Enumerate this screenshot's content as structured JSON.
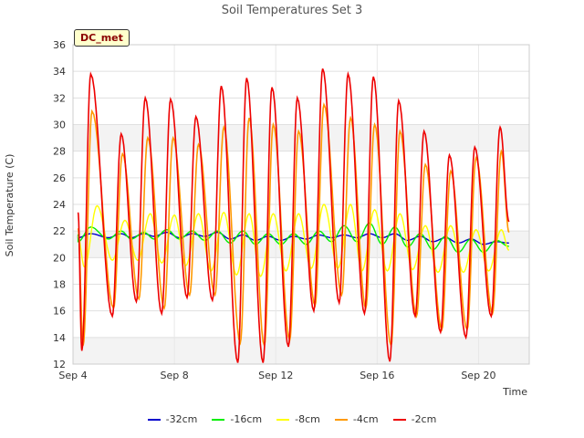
{
  "chart_data": {
    "type": "line",
    "title": "Soil Temperatures Set 3",
    "xlabel": "Time",
    "ylabel": "Soil Temperature (C)",
    "site_label": "DC_met",
    "x_ticks": [
      "Sep 4",
      "Sep 8",
      "Sep 12",
      "Sep 16",
      "Sep 20"
    ],
    "x_range_days": [
      4,
      22
    ],
    "ylim": [
      12,
      36
    ],
    "y_ticks": [
      12,
      14,
      16,
      18,
      20,
      22,
      24,
      26,
      28,
      30,
      32,
      34,
      36
    ],
    "grid": true,
    "legend_position": "bottom",
    "series": [
      {
        "name": "-32cm",
        "color": "#0000cc",
        "peak_days": [
          4.7,
          5.9,
          6.8,
          7.7,
          8.7,
          9.7,
          10.7,
          11.7,
          12.7,
          13.7,
          14.7,
          15.7,
          16.7,
          17.7,
          18.7,
          19.7,
          20.7
        ],
        "peaks": [
          21.8,
          21.8,
          21.8,
          21.9,
          21.8,
          21.9,
          21.7,
          21.6,
          21.6,
          21.7,
          21.7,
          21.8,
          21.8,
          21.6,
          21.5,
          21.4,
          21.2
        ],
        "troughs": [
          21.5,
          21.5,
          21.5,
          21.6,
          21.5,
          21.6,
          21.4,
          21.3,
          21.3,
          21.4,
          21.5,
          21.5,
          21.5,
          21.3,
          21.2,
          21.1,
          21.0
        ]
      },
      {
        "name": "-16cm",
        "color": "#00ee00",
        "peak_days": [
          4.7,
          5.9,
          6.8,
          7.7,
          8.7,
          9.7,
          10.7,
          11.7,
          12.7,
          13.7,
          14.7,
          15.7,
          16.7,
          17.7,
          18.7,
          19.7,
          20.7
        ],
        "peaks": [
          22.3,
          22.0,
          21.9,
          22.1,
          22.0,
          22.0,
          22.0,
          21.8,
          21.8,
          22.0,
          22.4,
          22.6,
          22.3,
          21.8,
          21.6,
          21.4,
          21.3
        ],
        "troughs": [
          21.2,
          21.4,
          21.4,
          21.4,
          21.4,
          21.3,
          21.1,
          21.0,
          21.0,
          21.0,
          21.2,
          21.2,
          21.0,
          20.8,
          20.6,
          20.4,
          20.4
        ]
      },
      {
        "name": "-8cm",
        "color": "#ffff00",
        "peak_days": [
          4.95,
          6.05,
          7.05,
          8.0,
          8.95,
          9.95,
          10.95,
          11.9,
          12.9,
          13.9,
          14.95,
          15.9,
          16.9,
          17.9,
          18.9,
          19.9,
          20.9
        ],
        "peaks": [
          23.9,
          22.8,
          23.3,
          23.2,
          23.3,
          23.4,
          23.3,
          23.3,
          23.3,
          24.0,
          24.0,
          23.6,
          23.3,
          22.4,
          22.4,
          22.1,
          22.1
        ],
        "troughs": [
          19.3,
          19.8,
          19.8,
          19.6,
          19.4,
          19.0,
          18.7,
          18.6,
          19.0,
          19.2,
          19.2,
          19.0,
          19.0,
          19.1,
          18.9,
          18.9,
          19.0
        ]
      },
      {
        "name": "-4cm",
        "color": "#ff9900",
        "peak_days": [
          4.75,
          5.95,
          6.95,
          7.95,
          8.95,
          9.95,
          10.95,
          11.9,
          12.9,
          13.9,
          14.95,
          15.9,
          16.9,
          17.9,
          18.9,
          19.9,
          20.9
        ],
        "peaks": [
          31.0,
          27.8,
          29.0,
          29.0,
          28.5,
          29.8,
          30.5,
          30.0,
          29.5,
          31.5,
          30.5,
          30.0,
          29.5,
          27.0,
          26.5,
          27.5,
          28.0
        ],
        "troughs": [
          13.4,
          16.2,
          16.9,
          16.2,
          17.2,
          17.2,
          13.6,
          13.4,
          13.8,
          16.4,
          17.2,
          16.2,
          13.4,
          15.6,
          14.6,
          14.6,
          15.8
        ]
      },
      {
        "name": "-2cm",
        "color": "#ee0000",
        "peak_days": [
          4.7,
          5.9,
          6.85,
          7.85,
          8.85,
          9.85,
          10.85,
          11.85,
          12.85,
          13.85,
          14.85,
          15.85,
          16.85,
          17.85,
          18.85,
          19.85,
          20.85
        ],
        "peaks": [
          33.8,
          29.3,
          32.0,
          31.9,
          30.6,
          32.9,
          33.5,
          32.8,
          32.0,
          34.2,
          33.8,
          33.6,
          31.8,
          29.5,
          27.7,
          28.3,
          29.8
        ],
        "troughs": [
          13.0,
          15.6,
          16.7,
          15.8,
          17.0,
          16.8,
          12.1,
          12.1,
          13.3,
          16.0,
          16.6,
          15.8,
          12.2,
          15.6,
          14.4,
          14.0,
          15.6
        ]
      }
    ]
  }
}
